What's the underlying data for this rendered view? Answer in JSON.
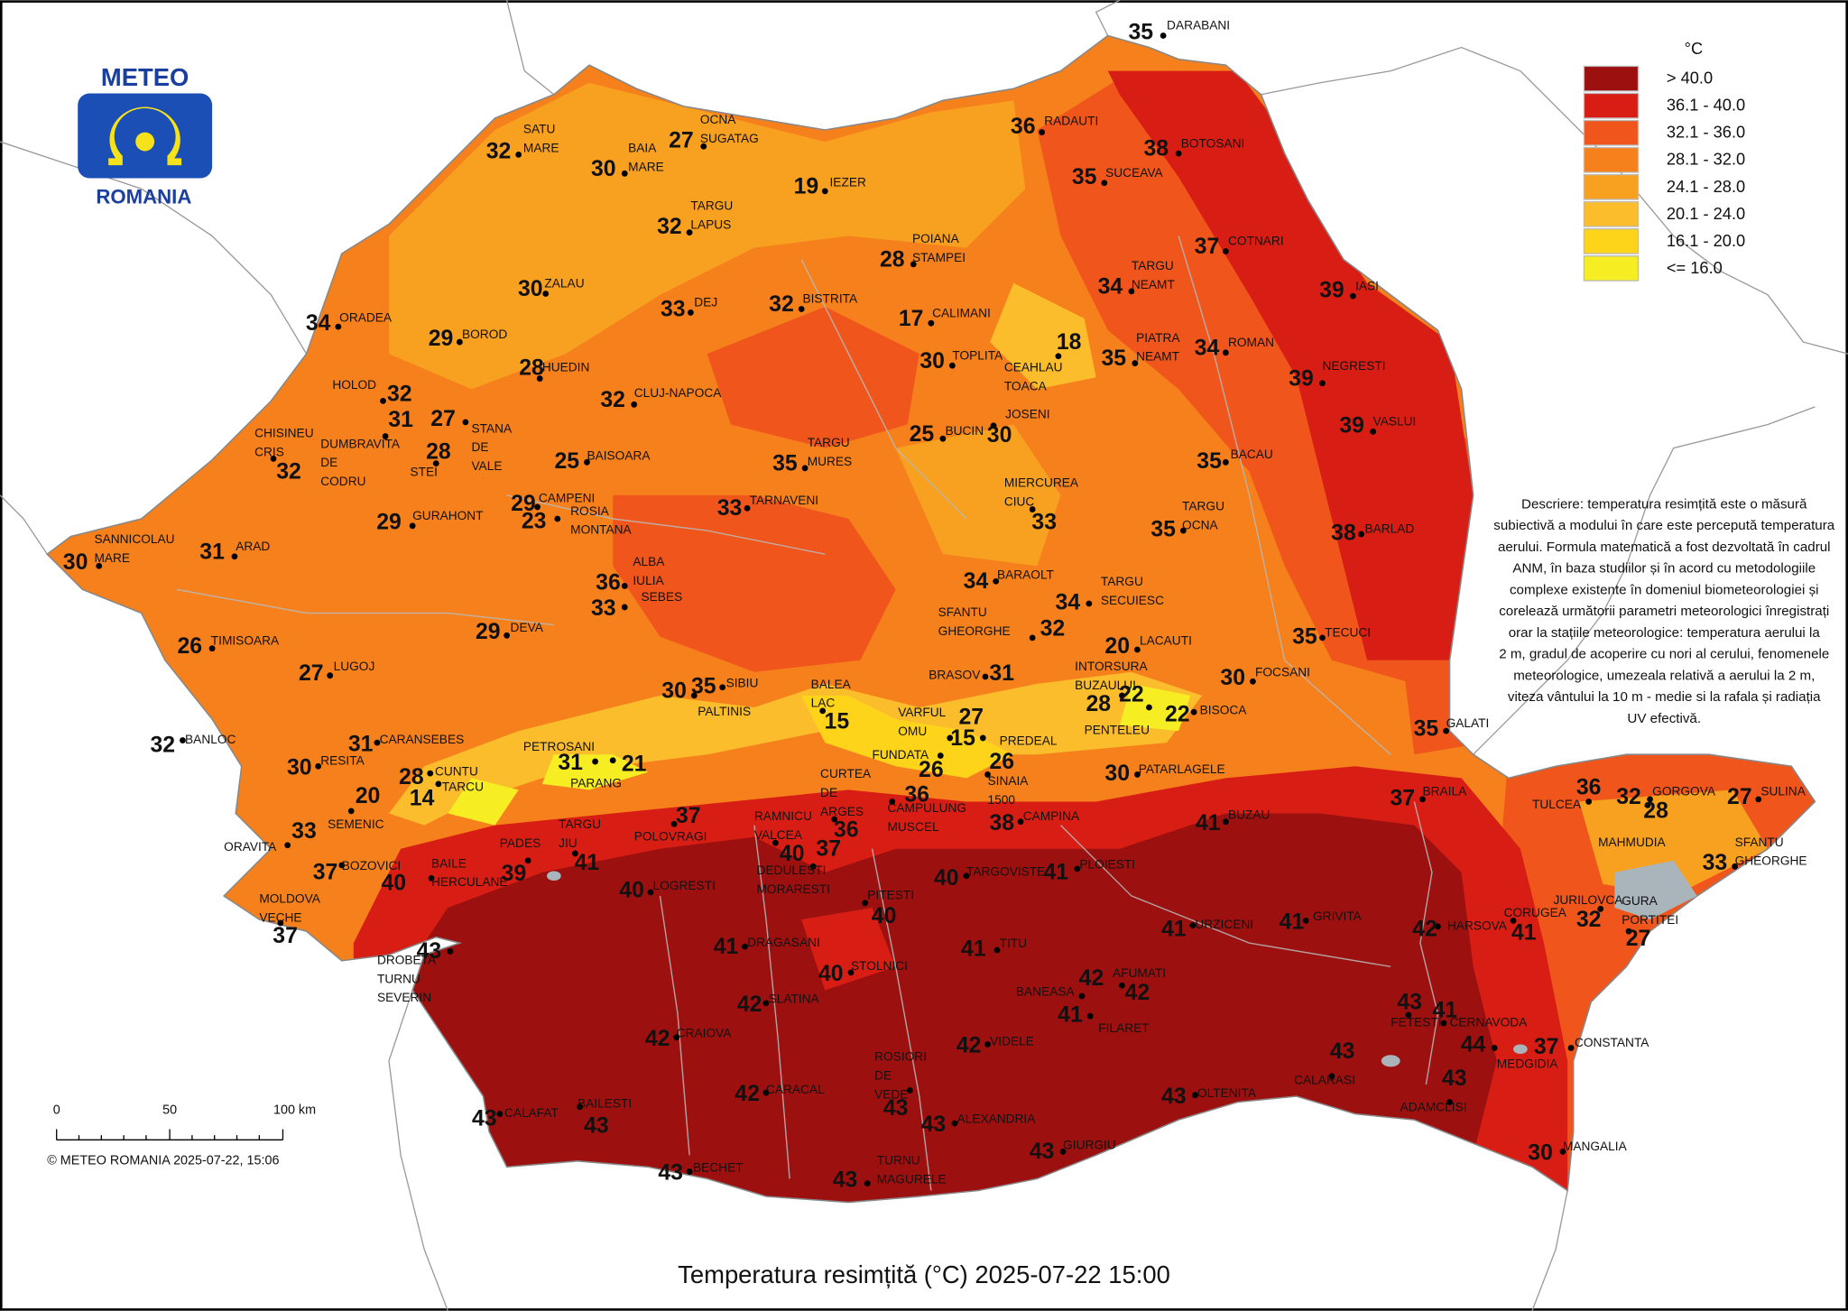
{
  "logo": {
    "top": "METEO",
    "bottom": "ROMANIA"
  },
  "legend": {
    "unit": "°C",
    "items": [
      {
        "label": "> 40.0",
        "color": "#9c1010"
      },
      {
        "label": "36.1 - 40.0",
        "color": "#d81e14"
      },
      {
        "label": "32.1 - 36.0",
        "color": "#f0561c"
      },
      {
        "label": "28.1 - 32.0",
        "color": "#f5801c"
      },
      {
        "label": "24.1 - 28.0",
        "color": "#f8a020"
      },
      {
        "label": "20.1 - 24.0",
        "color": "#fbbd2c"
      },
      {
        "label": "16.1 - 20.0",
        "color": "#fdd41a"
      },
      {
        "label": "<= 16.0",
        "color": "#f6ee22"
      }
    ]
  },
  "description": [
    "Descriere: temperatura resimțită este o măsură",
    "subiectivă a modului în care este percepută temperatura",
    "aerului. Formula matematică a fost dezvoltată în cadrul",
    "ANM, în baza studiilor și în acord cu metodologiile",
    "complexe existente în domeniul biometeorologiei și",
    "corelează următorii parametri meteorologici înregistrați",
    "orar la stațiile meteorologice: temperatura aerului la",
    "2 m, gradul de acoperire cu nori al cerului, fenomenele",
    "meteorologice, umezeala relativă a aerului la 2 m,",
    "viteza vântului la 10 m - medie si la rafala și radiația",
    "UV efectivă."
  ],
  "scale": {
    "labels": [
      "0",
      "50",
      "100 km"
    ]
  },
  "copyright": "© METEO ROMANIA 2025-07-22, 15:06",
  "title": "Temperatura resimțită (°C) 2025-07-22 15:00",
  "stations": [
    {
      "name": [
        "DARABANI"
      ],
      "value": 35
    },
    {
      "name": [
        "OCNA",
        "SUGATAG"
      ],
      "value": 27
    },
    {
      "name": [
        "SATU",
        "MARE"
      ],
      "value": 32
    },
    {
      "name": [
        "BAIA",
        "MARE"
      ],
      "value": 30
    },
    {
      "name": [
        "RADAUTI"
      ],
      "value": 36
    },
    {
      "name": [
        "BOTOSANI"
      ],
      "value": 38
    },
    {
      "name": [
        "SUCEAVA"
      ],
      "value": 35
    },
    {
      "name": [
        "IEZER"
      ],
      "value": 19
    },
    {
      "name": [
        "TARGU",
        "LAPUS"
      ],
      "value": 32
    },
    {
      "name": [
        "COTNARI"
      ],
      "value": 37
    },
    {
      "name": [
        "POIANA",
        "STAMPEI"
      ],
      "value": 28
    },
    {
      "name": [
        "ZALAU"
      ],
      "value": 30
    },
    {
      "name": [
        "TARGU",
        "NEAMT"
      ],
      "value": 34
    },
    {
      "name": [
        "DEJ"
      ],
      "value": 33
    },
    {
      "name": [
        "BISTRITA"
      ],
      "value": 32
    },
    {
      "name": [
        "IASI"
      ],
      "value": 39
    },
    {
      "name": [
        "ORADEA"
      ],
      "value": 34
    },
    {
      "name": [
        "CALIMANI"
      ],
      "value": 17
    },
    {
      "name": [
        "BOROD"
      ],
      "value": 29
    },
    {
      "name": [
        "CEAHLAU",
        "TOACA"
      ],
      "value": 18
    },
    {
      "name": [
        "PIATRA",
        "NEAMT"
      ],
      "value": 35
    },
    {
      "name": [
        "ROMAN"
      ],
      "value": 34
    },
    {
      "name": [
        "TOPLITA"
      ],
      "value": 30
    },
    {
      "name": [
        "HUEDIN"
      ],
      "value": 28
    },
    {
      "name": [
        "NEGRESTI"
      ],
      "value": 39
    },
    {
      "name": [
        "HOLOD"
      ],
      "value": 32
    },
    {
      "name": [
        "CLUJ-NAPOCA"
      ],
      "value": 32
    },
    {
      "name": [
        "DUMBRAVITA",
        "DE",
        "CODRU"
      ],
      "value": 31
    },
    {
      "name": [
        "STANA",
        "DE",
        "VALE"
      ],
      "value": 27
    },
    {
      "name": [
        "STEI"
      ],
      "value": 28
    },
    {
      "name": [
        "CHISINEU",
        "CRIS"
      ],
      "value": 32
    },
    {
      "name": [
        "JOSENI"
      ],
      "value": 30
    },
    {
      "name": [
        "BUCIN"
      ],
      "value": 25
    },
    {
      "name": [
        "BAISOARA"
      ],
      "value": 25
    },
    {
      "name": [
        "TARGU",
        "MURES"
      ],
      "value": 35
    },
    {
      "name": [
        "BACAU"
      ],
      "value": 35
    },
    {
      "name": [
        "VASLUI"
      ],
      "value": 39
    },
    {
      "name": [
        "CAMPENI"
      ],
      "value": 29
    },
    {
      "name": [
        "ROSIA",
        "MONTANA"
      ],
      "value": 23
    },
    {
      "name": [
        "TARNAVENI"
      ],
      "value": 33
    },
    {
      "name": [
        "MIERCUREA",
        "CIUC"
      ],
      "value": 33
    },
    {
      "name": [
        "TARGU",
        "OCNA"
      ],
      "value": 35
    },
    {
      "name": [
        "GURAHONT"
      ],
      "value": 29
    },
    {
      "name": [
        "BARLAD"
      ],
      "value": 38
    },
    {
      "name": [
        "SANNICOLAU",
        "MARE"
      ],
      "value": 30
    },
    {
      "name": [
        "ARAD"
      ],
      "value": 31
    },
    {
      "name": [
        "ALBA",
        "IULIA"
      ],
      "value": 36
    },
    {
      "name": [
        "SEBES"
      ],
      "value": 33
    },
    {
      "name": [
        "BARAOLT"
      ],
      "value": 34
    },
    {
      "name": [
        "TARGU",
        "SECUIESC"
      ],
      "value": 34
    },
    {
      "name": [
        "SFANTU",
        "GHEORGHE"
      ],
      "value": 32
    },
    {
      "name": [
        "DEVA"
      ],
      "value": 29
    },
    {
      "name": [
        "TIMISOARA"
      ],
      "value": 26
    },
    {
      "name": [
        "LACAUTI"
      ],
      "value": 20
    },
    {
      "name": [
        "TECUCI"
      ],
      "value": 35
    },
    {
      "name": [
        "SIBIU"
      ],
      "value": 35
    },
    {
      "name": [
        "PALTINIS"
      ],
      "value": 30
    },
    {
      "name": [
        "BRASOV"
      ],
      "value": 31
    },
    {
      "name": [
        "LUGOJ"
      ],
      "value": 27
    },
    {
      "name": [
        "BALEA",
        "LAC"
      ],
      "value": 15
    },
    {
      "name": [
        "INTORSURA",
        "BUZAULUI"
      ],
      "value": 28
    },
    {
      "name": [
        "PENTELEU"
      ],
      "value": 22
    },
    {
      "name": [
        "BISOCA"
      ],
      "value": 22
    },
    {
      "name": [
        "FOCSANI"
      ],
      "value": 30
    },
    {
      "name": [
        "VARFUL",
        "OMU"
      ],
      "value": 27
    },
    {
      "name": [
        "PREDEAL"
      ],
      "value": 15
    },
    {
      "name": [
        "BANLOC"
      ],
      "value": 32
    },
    {
      "name": [
        "CARANSEBES"
      ],
      "value": 31
    },
    {
      "name": [
        "PETROSANI"
      ],
      "value": 31
    },
    {
      "name": [
        "PARANG"
      ],
      "value": 21
    },
    {
      "name": [
        "FUNDATA"
      ],
      "value": 26
    },
    {
      "name": [
        "SINAIA",
        "1500"
      ],
      "value": 26
    },
    {
      "name": [
        "RESITA"
      ],
      "value": 30
    },
    {
      "name": [
        "PATARLAGELE"
      ],
      "value": 30
    },
    {
      "name": [
        "CUNTU"
      ],
      "value": 28
    },
    {
      "name": [
        "TARCU"
      ],
      "value": 14
    },
    {
      "name": [
        "SEMENIC"
      ],
      "value": 20
    },
    {
      "name": [
        "CURTEA",
        "DE",
        "ARGES"
      ],
      "value": 36
    },
    {
      "name": [
        "CAMPULUNG",
        "MUSCEL"
      ],
      "value": 36
    },
    {
      "name": [
        "CAMPINA"
      ],
      "value": 38
    },
    {
      "name": [
        "POLOVRAGI"
      ],
      "value": 37
    },
    {
      "name": [
        "BRAILA"
      ],
      "value": 37
    },
    {
      "name": [
        "BUZAU"
      ],
      "value": 41
    },
    {
      "name": [
        "TULCEA"
      ],
      "value": 36
    },
    {
      "name": [
        "GORGOVA"
      ],
      "value": 32
    },
    {
      "name": [
        "MAHMUDIA"
      ],
      "value": 28
    },
    {
      "name": [
        "SULINA"
      ],
      "value": 27
    },
    {
      "name": [
        "GALATI"
      ],
      "value": 35
    },
    {
      "name": [
        "ORAVITA"
      ],
      "value": 33
    },
    {
      "name": [
        "RAMNICU",
        "VALCEA"
      ],
      "value": 40
    },
    {
      "name": [
        "DEDULESTI",
        "MORARESTI"
      ],
      "value": 37
    },
    {
      "name": [
        "TARGU",
        "JIU"
      ],
      "value": 41
    },
    {
      "name": [
        "PADES"
      ],
      "value": 39
    },
    {
      "name": [
        "BOZOVICI"
      ],
      "value": 37
    },
    {
      "name": [
        "BAILE",
        "HERCULANE"
      ],
      "value": 40
    },
    {
      "name": [
        "LOGRESTI"
      ],
      "value": 40
    },
    {
      "name": [
        "PITESTI"
      ],
      "value": 40
    },
    {
      "name": [
        "TARGOVISTE"
      ],
      "value": 40
    },
    {
      "name": [
        "PLOIESTI"
      ],
      "value": 41
    },
    {
      "name": [
        "URZICENI"
      ],
      "value": 41
    },
    {
      "name": [
        "GRIVITA"
      ],
      "value": 41
    },
    {
      "name": [
        "HARSOVA"
      ],
      "value": 42
    },
    {
      "name": [
        "CORUGEA"
      ],
      "value": 41
    },
    {
      "name": [
        "JURILOVCA"
      ],
      "value": 32
    },
    {
      "name": [
        "GURA",
        "PORTITEI"
      ],
      "value": 27
    },
    {
      "name": [
        "SFANTU",
        "GHEORGHE"
      ],
      "value": 33
    },
    {
      "name": [
        "MOLDOVA",
        "VECHE"
      ],
      "value": 37
    },
    {
      "name": [
        "DROBETA",
        "TURNU",
        "SEVERIN"
      ],
      "value": 43
    },
    {
      "name": [
        "DRAGASANI"
      ],
      "value": 41
    },
    {
      "name": [
        "TITU"
      ],
      "value": 41
    },
    {
      "name": [
        "STOLNICI"
      ],
      "value": 40
    },
    {
      "name": [
        "AFUMATI"
      ],
      "value": 42
    },
    {
      "name": [
        "BANEASA"
      ],
      "value": 42
    },
    {
      "name": [
        "FILARET"
      ],
      "value": 41
    },
    {
      "name": [
        "SLATINA"
      ],
      "value": 42
    },
    {
      "name": [
        "FETESTI"
      ],
      "value": 43
    },
    {
      "name": [
        "CERNAVODA"
      ],
      "value": 41
    },
    {
      "name": [
        "CRAIOVA"
      ],
      "value": 42
    },
    {
      "name": [
        "VIDELE"
      ],
      "value": 42
    },
    {
      "name": [
        "MEDGIDIA"
      ],
      "value": 44
    },
    {
      "name": [
        "CONSTANTA"
      ],
      "value": 37
    },
    {
      "name": [
        "CALARASI"
      ],
      "value": 43
    },
    {
      "name": [
        "ADAMCLISI"
      ],
      "value": 43
    },
    {
      "name": [
        "ROSIORI",
        "DE",
        "VEDE"
      ],
      "value": 43
    },
    {
      "name": [
        "CARACAL"
      ],
      "value": 42
    },
    {
      "name": [
        "OLTENITA"
      ],
      "value": 43
    },
    {
      "name": [
        "ALEXANDRIA"
      ],
      "value": 43
    },
    {
      "name": [
        "CALAFAT"
      ],
      "value": 43
    },
    {
      "name": [
        "BAILESTI"
      ],
      "value": 43
    },
    {
      "name": [
        "GIURGIU"
      ],
      "value": 43
    },
    {
      "name": [
        "MANGALIA"
      ],
      "value": 30
    },
    {
      "name": [
        "BECHET"
      ],
      "value": 43
    },
    {
      "name": [
        "TURNU",
        "MAGURELE"
      ],
      "value": 43
    }
  ]
}
